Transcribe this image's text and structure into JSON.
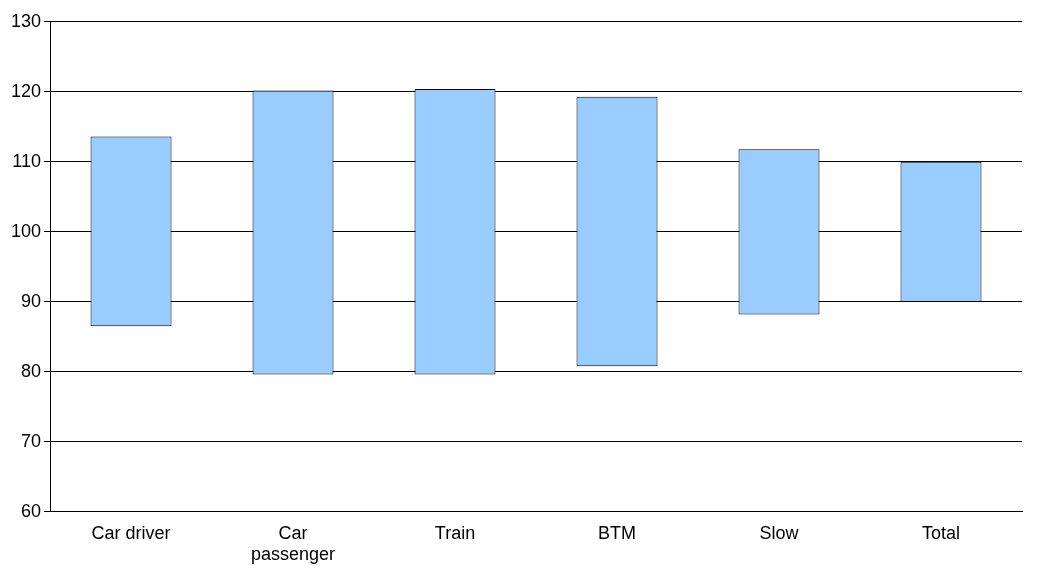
{
  "chart_data": {
    "type": "bar",
    "categories": [
      "Car driver",
      "Car passenger",
      "Train",
      "BTM",
      "Slow",
      "Total"
    ],
    "values": [
      27.1,
      40.6,
      40.8,
      38.5,
      23.6,
      20
    ],
    "base": [
      86.5,
      79.6,
      79.6,
      80.8,
      88.2,
      90
    ],
    "color": "#99ccff",
    "ylim": [
      60,
      130
    ],
    "yticks": [
      60,
      70,
      80,
      90,
      100,
      110,
      120,
      130
    ],
    "grid": "y",
    "legend": false
  }
}
